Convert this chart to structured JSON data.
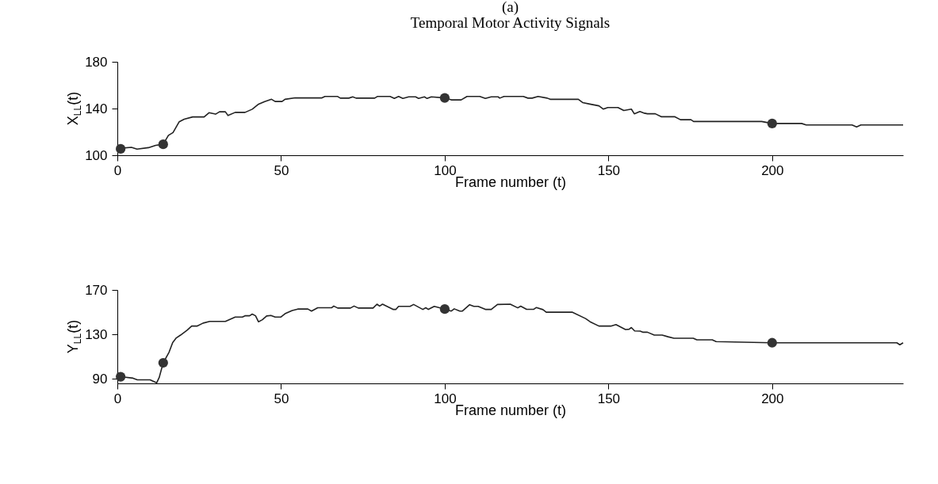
{
  "chart_data": [
    {
      "type": "line",
      "title": "Temporal Motor Activity Signals",
      "annotations": [
        "(a)"
      ],
      "xlabel": "Frame number (t)",
      "ylabel": "X$_{LL}$(t)",
      "xlim": [
        0,
        240
      ],
      "xticks": [
        0,
        50,
        100,
        150,
        200
      ],
      "ylim": [
        100,
        180
      ],
      "yticks": [
        100,
        140,
        180
      ],
      "grid": false,
      "line_style": "solid",
      "series": [
        {
          "color": "#222222",
          "x": [
            1,
            4.3,
            6,
            9.5,
            11.7,
            14,
            15.6,
            17,
            18.9,
            20.4,
            23,
            26.5,
            28,
            30,
            31.2,
            33,
            33.8,
            36,
            39,
            41.2,
            43,
            45,
            47.1,
            48.2,
            50.3,
            51.2,
            54.3,
            62.5,
            63.4,
            67.3,
            68.1,
            70.7,
            71.9,
            72.9,
            78.6,
            79.4,
            83.3,
            84.6,
            85.9,
            87.2,
            89,
            91.1,
            92,
            93.8,
            94.6,
            95.9,
            100,
            102,
            105,
            106.8,
            110.7,
            112.4,
            114.2,
            116.3,
            116.8,
            118.1,
            124,
            125.4,
            126.7,
            128.5,
            131.3,
            132.2,
            140.8,
            142.1,
            144.3,
            147.1,
            148.4,
            149.8,
            152.9,
            154.7,
            157,
            157.9,
            159.6,
            161,
            161.9,
            164.3,
            166.1,
            170.2,
            172,
            175.2,
            176,
            196.8,
            200,
            209,
            210.4,
            224.4,
            225.8,
            227.1,
            240
          ],
          "values": [
            106,
            106.8,
            105.3,
            106.5,
            108.5,
            109.4,
            117,
            119.4,
            128.7,
            130.9,
            132.8,
            132.8,
            136.4,
            135.2,
            137.2,
            137.2,
            134,
            136.7,
            136.7,
            139.4,
            143.5,
            146,
            147.9,
            146,
            146,
            147.9,
            149.1,
            149.1,
            150.3,
            150.3,
            148.9,
            148.9,
            150,
            148.9,
            148.9,
            150.3,
            150.3,
            148.6,
            150.3,
            148.6,
            150,
            150,
            148.6,
            150,
            148.6,
            150,
            149.1,
            147.4,
            147.4,
            150.3,
            150.3,
            148.6,
            150,
            150,
            148.9,
            150.3,
            150.3,
            148.9,
            148.9,
            150.3,
            148.9,
            147.9,
            147.9,
            145.1,
            143.8,
            142.3,
            139.5,
            140.8,
            140.8,
            138.3,
            139.5,
            135.5,
            137.5,
            136,
            135.5,
            135.5,
            133,
            133,
            130.4,
            130.4,
            128.9,
            128.9,
            127.2,
            127.2,
            125.9,
            125.9,
            124.2,
            125.9,
            125.9
          ]
        },
        {
          "type": "scatter",
          "marker": "circle",
          "color": "#333333",
          "x": [
            1,
            14,
            100,
            200
          ],
          "values": [
            105.5,
            109.4,
            149.1,
            127.2
          ]
        }
      ]
    },
    {
      "type": "line",
      "xlabel": "Frame number (t)",
      "ylabel": "Y$_{LL}$(t)",
      "xlim": [
        0,
        240
      ],
      "xticks": [
        0,
        50,
        100,
        150,
        200
      ],
      "ylim": [
        86,
        170
      ],
      "yticks": [
        90,
        130,
        170
      ],
      "grid": false,
      "line_style": "solid",
      "series": [
        {
          "color": "#222222",
          "x": [
            1,
            4.8,
            6.1,
            10,
            12,
            12.8,
            14,
            15.8,
            16.9,
            18,
            19.3,
            21.3,
            22.7,
            24.3,
            26.2,
            28.2,
            33,
            36,
            38.2,
            39.1,
            40.4,
            41.2,
            42.2,
            43.1,
            44.3,
            45.6,
            46.9,
            48.2,
            49.9,
            51.2,
            53.4,
            55.1,
            58.2,
            59.3,
            61.2,
            65.5,
            66.1,
            67.3,
            71.2,
            72.3,
            73.6,
            78.1,
            79.3,
            80.1,
            81,
            84.2,
            85.1,
            85.9,
            89.4,
            90.5,
            93.3,
            94.2,
            95,
            96.8,
            100,
            102,
            102.9,
            104.6,
            105.4,
            107.6,
            108.9,
            110.2,
            112.4,
            114.2,
            116.1,
            120,
            122.3,
            123.2,
            125,
            127.2,
            128,
            130,
            131,
            138.9,
            143,
            144.4,
            147.1,
            150.7,
            152.3,
            155.2,
            156.3,
            157,
            158,
            159.7,
            160.6,
            161.9,
            164,
            166.4,
            168.2,
            170,
            175.9,
            177,
            181.7,
            182.9,
            200,
            238.1,
            239,
            240
          ],
          "values": [
            92,
            90.7,
            89.2,
            89.2,
            86.5,
            91.4,
            104.5,
            114.1,
            122.7,
            126.9,
            129.4,
            133.8,
            137.5,
            137.5,
            140.2,
            141.7,
            141.7,
            145.6,
            145.6,
            146.8,
            146.8,
            148.3,
            146.8,
            141.4,
            143.2,
            146.6,
            147.1,
            145.6,
            145.6,
            148.6,
            151.5,
            152.8,
            152.8,
            151,
            154,
            154,
            155.5,
            153.7,
            153.7,
            155.5,
            153.7,
            153.7,
            157.2,
            155.5,
            157.2,
            152.5,
            152.5,
            155.2,
            155.2,
            156.9,
            152.5,
            154,
            152.5,
            155.2,
            152.8,
            151,
            153,
            151,
            151,
            156.7,
            155.2,
            155.2,
            152.5,
            152.5,
            156.9,
            157.2,
            153.9,
            155.4,
            152.6,
            152.6,
            154.2,
            152.3,
            150,
            150,
            144.3,
            141.4,
            137.5,
            137.5,
            138.8,
            134.4,
            134.7,
            136.2,
            133.2,
            133,
            132,
            132,
            129.4,
            129.4,
            127.9,
            126.6,
            126.6,
            125.1,
            125.1,
            123.5,
            122.5,
            122.5,
            120.7,
            122.5
          ]
        },
        {
          "type": "scatter",
          "marker": "circle",
          "color": "#333333",
          "x": [
            1,
            14,
            100,
            200
          ],
          "values": [
            92,
            104.5,
            152.8,
            122.5
          ]
        }
      ]
    }
  ]
}
